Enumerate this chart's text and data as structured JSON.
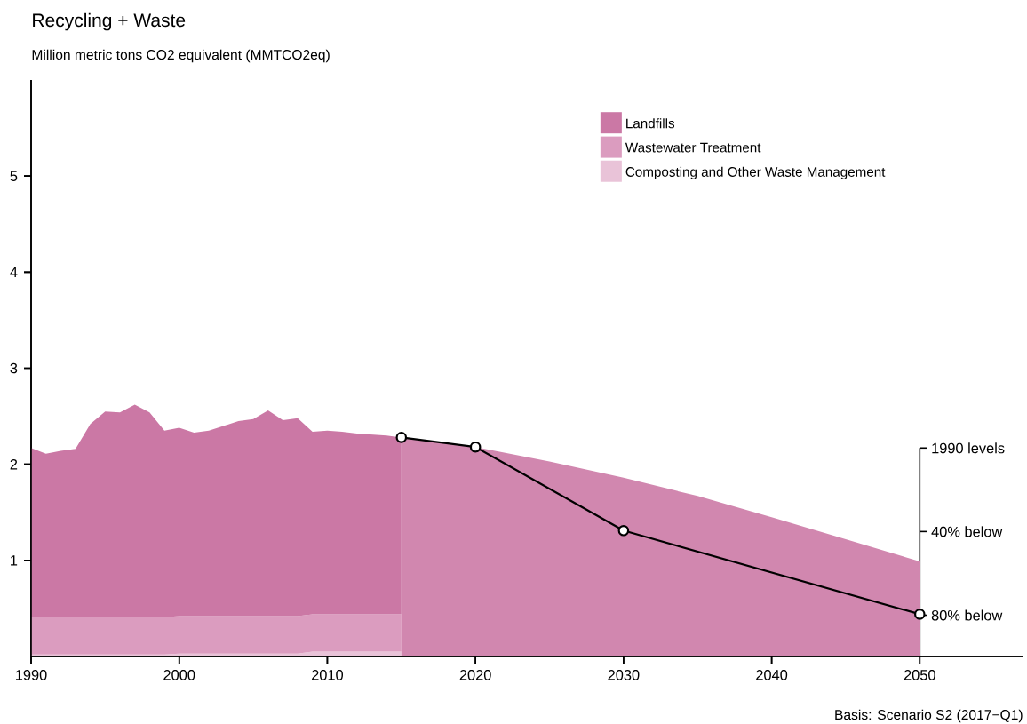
{
  "chart_data": [
    {
      "type": "area",
      "title": "Recycling + Waste",
      "subtitle": "Million metric tons CO2 equivalent (MMTCO2eq)",
      "stacked": true,
      "xlim": [
        1990,
        2057
      ],
      "xticks": [
        1990,
        2000,
        2010,
        2020,
        2030,
        2040,
        2050
      ],
      "ylim": [
        0,
        6
      ],
      "yticks": [
        1,
        2,
        3,
        4,
        5
      ],
      "tick_labels": false,
      "legend": "top right",
      "series": [
        {
          "name": "Composting and Other Waste Management",
          "color": "#e9c3d8",
          "x": [
            1990,
            1991,
            1992,
            1993,
            1994,
            1995,
            1996,
            1997,
            1998,
            1999,
            2000,
            2001,
            2002,
            2003,
            2004,
            2005,
            2006,
            2007,
            2008,
            2009,
            2010,
            2011,
            2012,
            2013,
            2014,
            2015
          ],
          "values": [
            0.02,
            0.02,
            0.02,
            0.02,
            0.02,
            0.02,
            0.02,
            0.02,
            0.02,
            0.02,
            0.03,
            0.03,
            0.03,
            0.03,
            0.03,
            0.03,
            0.03,
            0.03,
            0.03,
            0.05,
            0.05,
            0.05,
            0.05,
            0.05,
            0.05,
            0.05
          ]
        },
        {
          "name": "Wastewater Treatment",
          "color": "#db9cbf",
          "x": [
            1990,
            1991,
            1992,
            1993,
            1994,
            1995,
            1996,
            1997,
            1998,
            1999,
            2000,
            2001,
            2002,
            2003,
            2004,
            2005,
            2006,
            2007,
            2008,
            2009,
            2010,
            2011,
            2012,
            2013,
            2014,
            2015
          ],
          "values": [
            0.39,
            0.39,
            0.39,
            0.39,
            0.39,
            0.39,
            0.39,
            0.39,
            0.39,
            0.39,
            0.39,
            0.39,
            0.39,
            0.39,
            0.39,
            0.39,
            0.39,
            0.39,
            0.39,
            0.39,
            0.39,
            0.39,
            0.39,
            0.39,
            0.39,
            0.39
          ]
        },
        {
          "name": "Landfills",
          "color": "#cb78a5",
          "x": [
            1990,
            1991,
            1992,
            1993,
            1994,
            1995,
            1996,
            1997,
            1998,
            1999,
            2000,
            2001,
            2002,
            2003,
            2004,
            2005,
            2006,
            2007,
            2008,
            2009,
            2010,
            2011,
            2012,
            2013,
            2014,
            2015
          ],
          "values": [
            1.76,
            1.7,
            1.73,
            1.75,
            2.01,
            2.14,
            2.13,
            2.21,
            2.13,
            1.94,
            1.96,
            1.91,
            1.93,
            1.98,
            2.03,
            2.05,
            2.14,
            2.04,
            2.06,
            1.9,
            1.91,
            1.9,
            1.88,
            1.87,
            1.86,
            1.84
          ]
        }
      ]
    },
    {
      "type": "area",
      "annotations": [
        "Basis: Scenario S2 (2017−Q1)"
      ],
      "xlim": [
        1990,
        2057
      ],
      "xticks": [
        1990,
        2000,
        2010,
        2020,
        2030,
        2040,
        2050
      ],
      "ylim": [
        0,
        6
      ],
      "yticks": [
        1,
        2,
        3,
        4,
        5
      ],
      "ref_lines": [
        {
          "axis": "y",
          "value": 2.17,
          "label": "1990 levels"
        },
        {
          "axis": "y",
          "value": 1.3,
          "label": "40% below"
        },
        {
          "axis": "y",
          "value": 0.43,
          "label": "80% below"
        }
      ],
      "series": [
        {
          "type": "area",
          "color": "#d187af",
          "x": [
            2015,
            2020,
            2025,
            2030,
            2035,
            2040,
            2045,
            2050
          ],
          "values": [
            2.28,
            2.18,
            2.03,
            1.86,
            1.67,
            1.45,
            1.22,
            0.99
          ]
        },
        {
          "type": "line",
          "color": "#000000",
          "marker": "circle",
          "x": [
            2015,
            2020,
            2030,
            2050
          ],
          "values": [
            2.28,
            2.18,
            1.31,
            0.44
          ]
        }
      ]
    }
  ]
}
